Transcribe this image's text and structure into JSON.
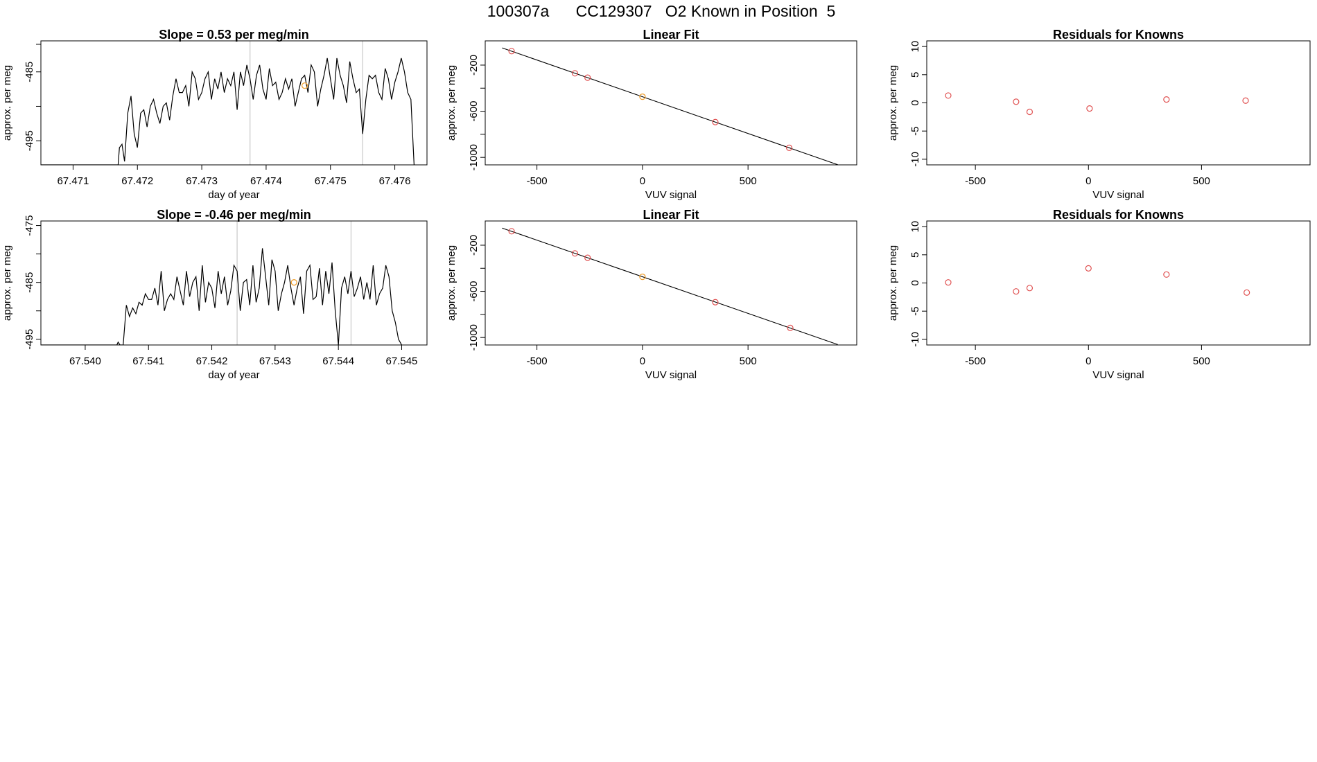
{
  "figure": {
    "title": "100307a      CC129307   O2 Known in Position  5"
  },
  "colors": {
    "line": "#000000",
    "known_point": "#e05050",
    "highlight_point": "#f0a030",
    "vertical_marker": "#c8c8c8"
  },
  "chart_data": [
    {
      "id": "ts1",
      "type": "line",
      "title": "Slope =  0.53  per meg/min",
      "xlabel": "day of year",
      "ylabel": "approx. per meg",
      "xlim": [
        67.4705,
        67.4765
      ],
      "ylim": [
        -498.5,
        -480.5
      ],
      "xticks": [
        {
          "v": 67.471,
          "label": "67.471"
        },
        {
          "v": 67.472,
          "label": "67.472"
        },
        {
          "v": 67.473,
          "label": "67.473"
        },
        {
          "v": 67.474,
          "label": "67.474"
        },
        {
          "v": 67.475,
          "label": "67.475"
        },
        {
          "v": 67.476,
          "label": "67.476"
        }
      ],
      "yticks": [
        {
          "v": -495,
          "label": "-495"
        },
        {
          "v": -490,
          "label": ""
        },
        {
          "v": -485,
          "label": "-485"
        },
        {
          "v": -481,
          "label": ""
        }
      ],
      "vlines": [
        67.47375,
        67.4755
      ],
      "highlight": {
        "x": 67.4746,
        "y": -487
      },
      "series": [
        {
          "x": [
            67.4705,
            67.4717,
            67.47172,
            67.47176,
            67.4718,
            67.47185,
            67.4719,
            67.47195,
            67.472,
            67.47205,
            67.4721,
            67.47215,
            67.4722,
            67.47225,
            67.4723,
            67.47235,
            67.4724,
            67.47245,
            67.4725,
            67.47255,
            67.4726,
            67.47265,
            67.4727,
            67.47275,
            67.4728,
            67.47285,
            67.4729,
            67.47295,
            67.473,
            67.47305,
            67.4731,
            67.47315,
            67.4732,
            67.47325,
            67.4733,
            67.47335,
            67.4734,
            67.47345,
            67.4735,
            67.47355,
            67.4736,
            67.47365,
            67.4737,
            67.47375,
            67.4738,
            67.47385,
            67.4739,
            67.47395,
            67.474,
            67.47405,
            67.4741,
            67.47415,
            67.4742,
            67.47425,
            67.4743,
            67.47435,
            67.4744,
            67.47445,
            67.4745,
            67.47455,
            67.4746,
            67.47465,
            67.4747,
            67.47475,
            67.4748,
            67.47485,
            67.4749,
            67.47495,
            67.475,
            67.47505,
            67.4751,
            67.47515,
            67.4752,
            67.47525,
            67.4753,
            67.47535,
            67.4754,
            67.47545,
            67.4755,
            67.47555,
            67.4756,
            67.47565,
            67.4757,
            67.47575,
            67.4758,
            67.47585,
            67.4759,
            67.47595,
            67.476,
            67.47605,
            67.4761,
            67.47615,
            67.4762,
            67.47625,
            67.4763
          ],
          "y": [
            -498.5,
            -498.5,
            -496,
            -495.5,
            -498,
            -491,
            -488.5,
            -494,
            -496,
            -491,
            -490.5,
            -493,
            -490,
            -489,
            -491,
            -492.5,
            -490,
            -489.5,
            -492,
            -488.5,
            -486,
            -488,
            -488,
            -487,
            -490,
            -485,
            -486,
            -489,
            -488,
            -486,
            -485,
            -489,
            -486,
            -487.5,
            -485,
            -488,
            -486,
            -487,
            -485,
            -490.5,
            -485,
            -487,
            -484,
            -486,
            -489,
            -485.5,
            -484,
            -487.5,
            -489,
            -484.5,
            -487,
            -486.5,
            -489,
            -488,
            -486,
            -487.5,
            -486,
            -490,
            -488,
            -486,
            -485.5,
            -488,
            -484,
            -485,
            -490,
            -487.5,
            -485.5,
            -483,
            -486,
            -489,
            -483,
            -485.5,
            -487,
            -489.5,
            -483.5,
            -486,
            -488,
            -487.5,
            -494,
            -489,
            -485.5,
            -486,
            -485.5,
            -488,
            -489,
            -484.5,
            -486,
            -489,
            -486.5,
            -485,
            -483,
            -485,
            -488,
            -489,
            -498.5
          ]
        }
      ]
    },
    {
      "id": "fit1",
      "type": "scatter",
      "title": "Linear Fit",
      "xlabel": "VUV signal",
      "ylabel": "approx. per meg",
      "xlim": [
        -745,
        1015
      ],
      "ylim": [
        -1065,
        10
      ],
      "xticks": [
        {
          "v": -500,
          "label": "-500"
        },
        {
          "v": 0,
          "label": "0"
        },
        {
          "v": 500,
          "label": "500"
        }
      ],
      "yticks": [
        {
          "v": -1000,
          "label": "-1000"
        },
        {
          "v": -800,
          "label": ""
        },
        {
          "v": -600,
          "label": "-600"
        },
        {
          "v": -400,
          "label": ""
        },
        {
          "v": -200,
          "label": "-200"
        }
      ],
      "fit_line": {
        "x": [
          -665,
          925
        ],
        "y": -1
      },
      "points": [
        {
          "x": -620,
          "y": -79
        },
        {
          "x": -320,
          "y": -271
        },
        {
          "x": -260,
          "y": -309
        },
        {
          "x": 345,
          "y": -694
        },
        {
          "x": 695,
          "y": -917
        }
      ],
      "highlight": {
        "x": 0,
        "y": -474
      }
    },
    {
      "id": "res1",
      "type": "scatter",
      "title": "Residuals for Knowns",
      "xlabel": "VUV signal",
      "ylabel": "approx. per meg",
      "xlim": [
        -715,
        980
      ],
      "ylim": [
        -11,
        11
      ],
      "xticks": [
        {
          "v": -500,
          "label": "-500"
        },
        {
          "v": 0,
          "label": "0"
        },
        {
          "v": 500,
          "label": "500"
        }
      ],
      "yticks": [
        {
          "v": -10,
          "label": "-10"
        },
        {
          "v": -5,
          "label": "-5"
        },
        {
          "v": 0,
          "label": "0"
        },
        {
          "v": 5,
          "label": "5"
        },
        {
          "v": 10,
          "label": "10"
        }
      ],
      "points": [
        {
          "x": -620,
          "y": 1.3
        },
        {
          "x": -320,
          "y": 0.2
        },
        {
          "x": -260,
          "y": -1.6
        },
        {
          "x": 5,
          "y": -1
        },
        {
          "x": 345,
          "y": 0.6
        },
        {
          "x": 695,
          "y": 0.4
        }
      ]
    },
    {
      "id": "ts2",
      "type": "line",
      "title": "Slope =  -0.46  per meg/min",
      "xlabel": "day of year",
      "ylabel": "approx. per meg",
      "xlim": [
        67.5393,
        67.5454
      ],
      "ylim": [
        -496,
        -474.2
      ],
      "xticks": [
        {
          "v": 67.54,
          "label": "67.540"
        },
        {
          "v": 67.541,
          "label": "67.541"
        },
        {
          "v": 67.542,
          "label": "67.542"
        },
        {
          "v": 67.543,
          "label": "67.543"
        },
        {
          "v": 67.544,
          "label": "67.544"
        },
        {
          "v": 67.545,
          "label": "67.545"
        }
      ],
      "yticks": [
        {
          "v": -495,
          "label": "-495"
        },
        {
          "v": -490,
          "label": ""
        },
        {
          "v": -485,
          "label": "-485"
        },
        {
          "v": -480,
          "label": ""
        },
        {
          "v": -475,
          "label": "-475"
        }
      ],
      "vlines": [
        67.5424,
        67.5442
      ],
      "highlight": {
        "x": 67.5433,
        "y": -485
      },
      "series": [
        {
          "x": [
            67.5393,
            67.5405,
            67.54052,
            67.54055,
            67.5406,
            67.54065,
            67.5407,
            67.54075,
            67.5408,
            67.54085,
            67.5409,
            67.54095,
            67.541,
            67.54105,
            67.5411,
            67.54115,
            67.5412,
            67.54125,
            67.5413,
            67.54135,
            67.5414,
            67.54145,
            67.5415,
            67.54155,
            67.5416,
            67.54165,
            67.5417,
            67.54175,
            67.5418,
            67.54185,
            67.5419,
            67.54195,
            67.542,
            67.54205,
            67.5421,
            67.54215,
            67.5422,
            67.54225,
            67.5423,
            67.54235,
            67.5424,
            67.54245,
            67.5425,
            67.54255,
            67.5426,
            67.54265,
            67.5427,
            67.54275,
            67.5428,
            67.54285,
            67.5429,
            67.54295,
            67.543,
            67.54305,
            67.5431,
            67.54315,
            67.5432,
            67.54325,
            67.5433,
            67.54335,
            67.5434,
            67.54345,
            67.5435,
            67.54355,
            67.5436,
            67.54365,
            67.5437,
            67.54375,
            67.5438,
            67.54385,
            67.5439,
            67.54395,
            67.544,
            67.54405,
            67.5441,
            67.54415,
            67.5442,
            67.54425,
            67.5443,
            67.54435,
            67.5444,
            67.54445,
            67.5445,
            67.54455,
            67.5446,
            67.54465,
            67.5447,
            67.54475,
            67.5448,
            67.54485,
            67.5449,
            67.54495,
            67.545
          ],
          "y": [
            -496,
            -496,
            -495.5,
            -496,
            -496,
            -489,
            -491,
            -489.5,
            -490.5,
            -488.5,
            -489,
            -487,
            -488,
            -488,
            -486,
            -489,
            -483,
            -490,
            -488,
            -487,
            -488,
            -484,
            -486.5,
            -489,
            -483,
            -487.5,
            -485,
            -484,
            -490,
            -482,
            -488.5,
            -485,
            -486,
            -489.5,
            -483,
            -487,
            -484,
            -489,
            -486.5,
            -482,
            -483,
            -490,
            -485,
            -484.5,
            -489,
            -482,
            -488.5,
            -486,
            -479,
            -484,
            -489,
            -481,
            -483,
            -490,
            -487,
            -485,
            -482,
            -486,
            -489,
            -486,
            -484,
            -490.5,
            -483,
            -482,
            -488,
            -487.5,
            -482.5,
            -489,
            -483,
            -487,
            -481.5,
            -490,
            -496,
            -486,
            -484,
            -487,
            -483,
            -487.5,
            -486,
            -484,
            -488,
            -485,
            -488,
            -482,
            -489,
            -487,
            -486,
            -482,
            -484,
            -490,
            -492,
            -495,
            -496
          ]
        }
      ]
    },
    {
      "id": "fit2",
      "type": "scatter",
      "title": "Linear Fit",
      "xlabel": "VUV signal",
      "ylabel": "approx. per meg",
      "xlim": [
        -745,
        1015
      ],
      "ylim": [
        -1065,
        10
      ],
      "xticks": [
        {
          "v": -500,
          "label": "-500"
        },
        {
          "v": 0,
          "label": "0"
        },
        {
          "v": 500,
          "label": "500"
        }
      ],
      "yticks": [
        {
          "v": -1000,
          "label": "-1000"
        },
        {
          "v": -800,
          "label": ""
        },
        {
          "v": -600,
          "label": "-600"
        },
        {
          "v": -400,
          "label": ""
        },
        {
          "v": -200,
          "label": "-200"
        }
      ],
      "fit_line": {
        "x": [
          -665,
          925
        ],
        "y": -1
      },
      "points": [
        {
          "x": -620,
          "y": -79
        },
        {
          "x": -320,
          "y": -271
        },
        {
          "x": -260,
          "y": -309
        },
        {
          "x": 345,
          "y": -694
        },
        {
          "x": 700,
          "y": -917
        }
      ],
      "highlight": {
        "x": 0,
        "y": -474
      }
    },
    {
      "id": "res2",
      "type": "scatter",
      "title": "Residuals for Knowns",
      "xlabel": "VUV signal",
      "ylabel": "approx. per meg",
      "xlim": [
        -715,
        980
      ],
      "ylim": [
        -11,
        11
      ],
      "xticks": [
        {
          "v": -500,
          "label": "-500"
        },
        {
          "v": 0,
          "label": "0"
        },
        {
          "v": 500,
          "label": "500"
        }
      ],
      "yticks": [
        {
          "v": -10,
          "label": "-10"
        },
        {
          "v": -5,
          "label": "-5"
        },
        {
          "v": 0,
          "label": "0"
        },
        {
          "v": 5,
          "label": "5"
        },
        {
          "v": 10,
          "label": "10"
        }
      ],
      "points": [
        {
          "x": -620,
          "y": 0.1
        },
        {
          "x": -320,
          "y": -1.5
        },
        {
          "x": -260,
          "y": -0.9
        },
        {
          "x": 0,
          "y": 2.6
        },
        {
          "x": 345,
          "y": 1.5
        },
        {
          "x": 700,
          "y": -1.7
        }
      ]
    }
  ]
}
